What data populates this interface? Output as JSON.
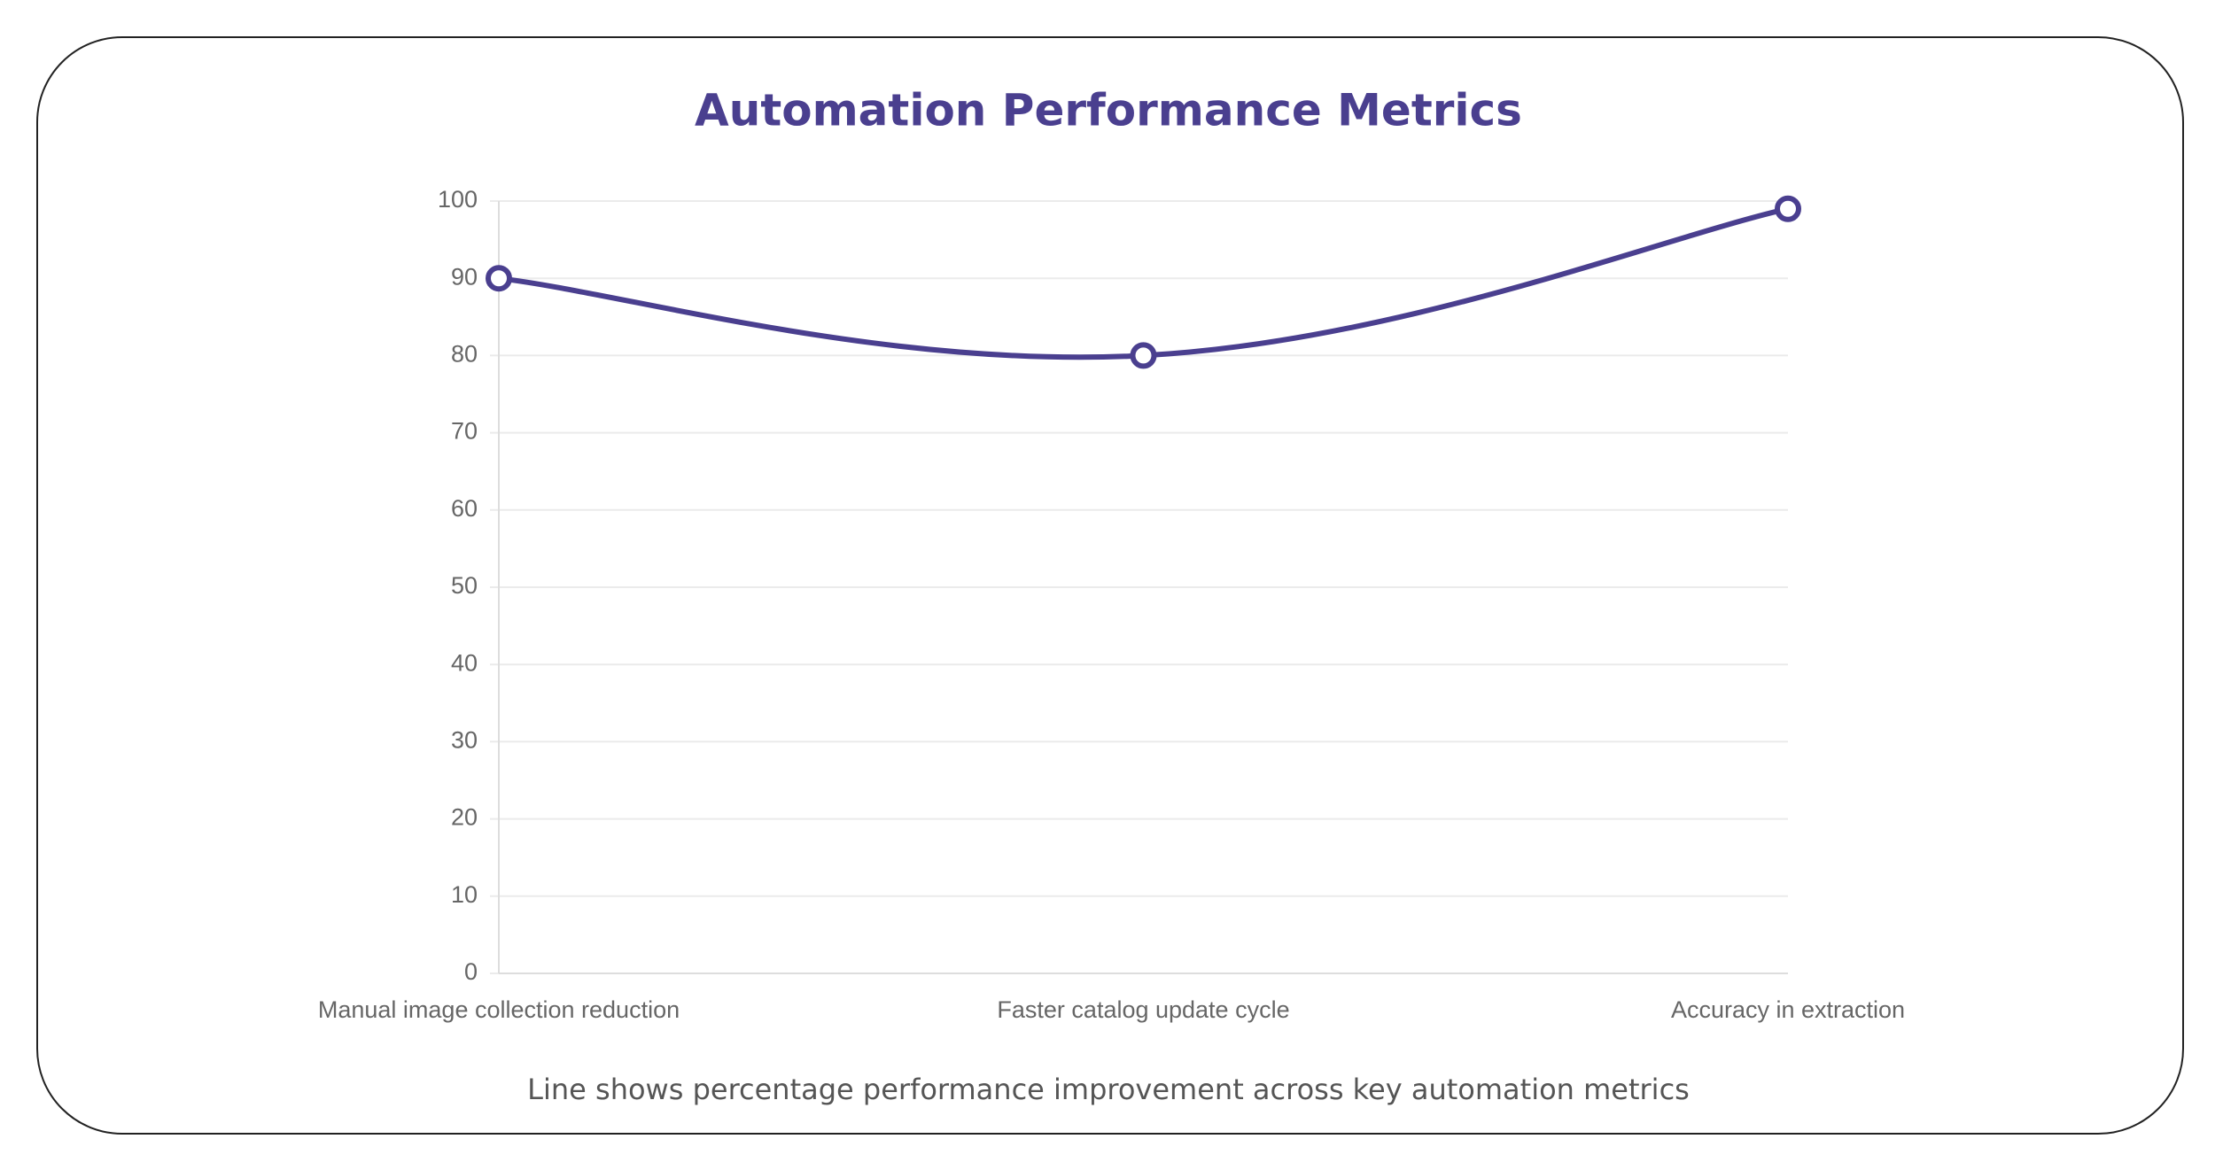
{
  "chart_data": {
    "type": "line",
    "title": "Automation Performance Metrics",
    "categories": [
      "Manual image collection reduction",
      "Faster catalog update cycle",
      "Accuracy in extraction"
    ],
    "series": [
      {
        "color": "#4a3f8f",
        "values": [
          90,
          80,
          99
        ]
      }
    ],
    "ylim": [
      0,
      100
    ],
    "yticks": [
      0,
      10,
      20,
      30,
      40,
      50,
      60,
      70,
      80,
      90,
      100
    ],
    "grid": true,
    "caption": "Line shows percentage performance improvement across key automation metrics"
  }
}
